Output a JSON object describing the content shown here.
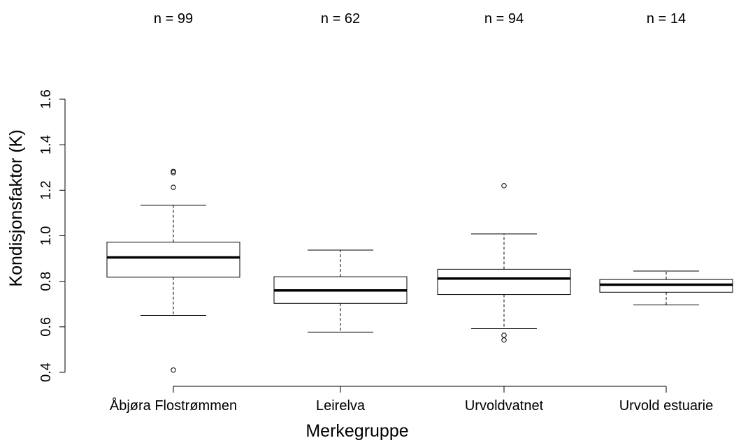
{
  "chart_data": {
    "type": "boxplot",
    "xlabel": "Merkegruppe",
    "ylabel": "Kondisjonsfaktor (K)",
    "ylim": [
      0.4,
      1.6
    ],
    "yticks": [
      "0.4",
      "0.6",
      "0.8",
      "1.0",
      "1.2",
      "1.4",
      "1.6"
    ],
    "grid": false,
    "groups": [
      {
        "name": "Åbjøra Flostrømmen",
        "n_label": "n = 99",
        "whisker_low": 0.65,
        "q1": 0.818,
        "median": 0.905,
        "q3": 0.972,
        "whisker_high": 1.134,
        "outliers": [
          0.41,
          1.213,
          1.277,
          1.283
        ]
      },
      {
        "name": "Leirelva",
        "n_label": "n = 62",
        "whisker_low": 0.577,
        "q1": 0.703,
        "median": 0.76,
        "q3": 0.82,
        "whisker_high": 0.937,
        "outliers": []
      },
      {
        "name": "Urvoldvatnet",
        "n_label": "n = 94",
        "whisker_low": 0.592,
        "q1": 0.742,
        "median": 0.812,
        "q3": 0.853,
        "whisker_high": 1.008,
        "outliers": [
          0.542,
          0.563,
          1.22
        ]
      },
      {
        "name": "Urvold estuarie",
        "n_label": "n = 14",
        "whisker_low": 0.696,
        "q1": 0.752,
        "median": 0.785,
        "q3": 0.808,
        "whisker_high": 0.845,
        "outliers": []
      }
    ]
  }
}
